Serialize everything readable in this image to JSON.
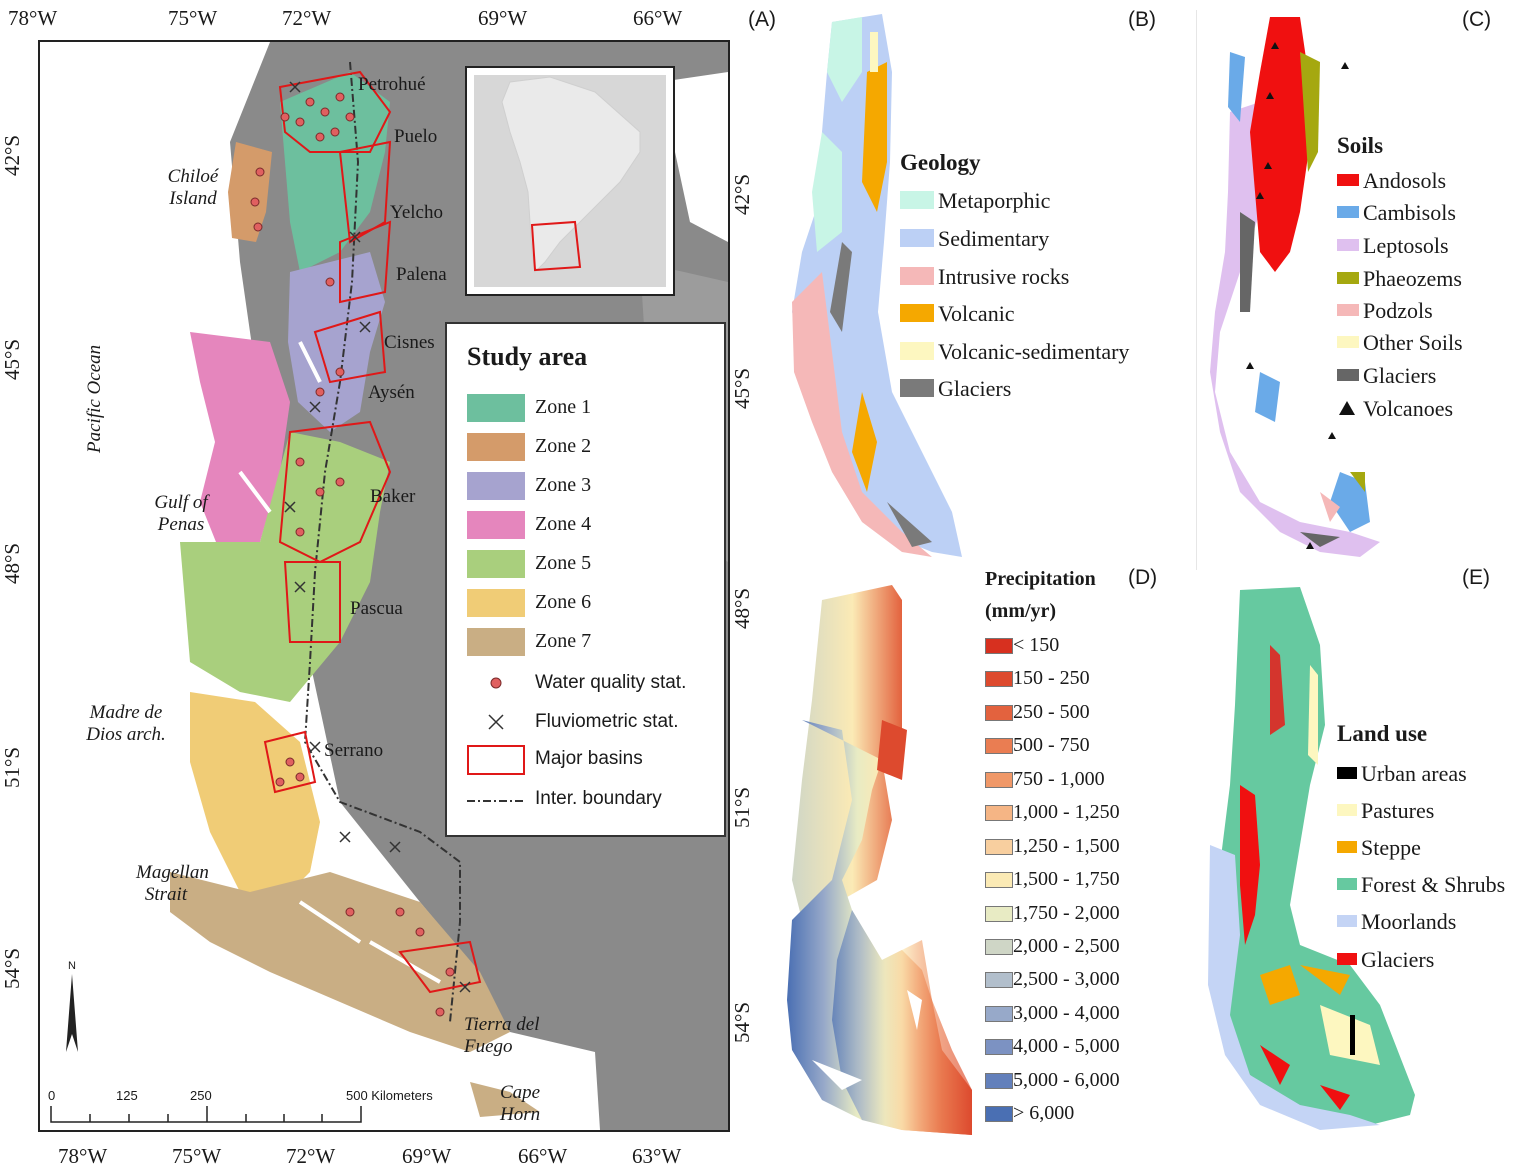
{
  "panel_a": {
    "letter": "(A)",
    "top_lon": [
      "78°W",
      "75°W",
      "72°W",
      "69°W",
      "66°W"
    ],
    "bottom_lon": [
      "78°W",
      "75°W",
      "72°W",
      "69°W",
      "66°W",
      "63°W"
    ],
    "left_lat": [
      "42°S",
      "45°S",
      "48°S",
      "51°S",
      "54°S"
    ],
    "places": {
      "chiloe": "Chiloé Island",
      "pacific": "Pacific Ocean",
      "gulf": "Gulf of Penas",
      "madre": "Madre de Dios arch.",
      "magellan": "Magellan Strait",
      "tierra": "Tierra del Fuego",
      "cape": "Cape Horn"
    },
    "basins": [
      "Petrohué",
      "Puelo",
      "Yelcho",
      "Palena",
      "Cisnes",
      "Aysén",
      "Baker",
      "Pascua",
      "Serrano"
    ],
    "legend": {
      "title": "Study area",
      "zones": [
        {
          "label": "Zone 1",
          "color": "#6dbf9e"
        },
        {
          "label": "Zone 2",
          "color": "#d49b6a"
        },
        {
          "label": "Zone 3",
          "color": "#a6a3cf"
        },
        {
          "label": "Zone 4",
          "color": "#e586bd"
        },
        {
          "label": "Zone 5",
          "color": "#a9cf7d"
        },
        {
          "label": "Zone 6",
          "color": "#f0cc76"
        },
        {
          "label": "Zone 7",
          "color": "#c9ae84"
        }
      ],
      "water_quality": "Water quality stat.",
      "fluviometric": "Fluviometric stat.",
      "major_basins": "Major basins",
      "inter_boundary": "Inter. boundary"
    },
    "north_arrow": "N",
    "scale": {
      "ticks": [
        "0",
        "125",
        "250",
        "500 Kilometers"
      ]
    }
  },
  "panel_b": {
    "letter": "(B)",
    "lat_labels": [
      "42°S",
      "45°S"
    ],
    "title": "Geology",
    "items": [
      {
        "label": "Metaporphic",
        "color": "#c8f5e6"
      },
      {
        "label": "Sedimentary",
        "color": "#bcd0f5"
      },
      {
        "label": "Intrusive rocks",
        "color": "#f5b8b8"
      },
      {
        "label": "Volcanic",
        "color": "#f5a800"
      },
      {
        "label": "Volcanic-sedimentary",
        "color": "#fdf7c0"
      },
      {
        "label": "Glaciers",
        "color": "#7a7a7a"
      }
    ]
  },
  "panel_c": {
    "letter": "(C)",
    "title": "Soils",
    "items": [
      {
        "label": "Andosols",
        "color": "#f01010"
      },
      {
        "label": "Cambisols",
        "color": "#6aaae8"
      },
      {
        "label": "Leptosols",
        "color": "#dfc0ef"
      },
      {
        "label": "Phaeozems",
        "color": "#a5a810"
      },
      {
        "label": "Podzols",
        "color": "#f5b8b8"
      },
      {
        "label": "Other Soils",
        "color": "#fdf7c0"
      },
      {
        "label": "Glaciers",
        "color": "#666666"
      }
    ],
    "volcanoes": "Volcanoes"
  },
  "panel_d": {
    "letter": "(D)",
    "lat_labels": [
      "48°S",
      "51°S",
      "54°S"
    ],
    "title_line1": "Precipitation",
    "title_line2": "(mm/yr)",
    "classes": [
      {
        "label": "< 150",
        "color": "#d7301f"
      },
      {
        "label": "150 - 250",
        "color": "#dd4a2e"
      },
      {
        "label": "250 - 500",
        "color": "#e3623e"
      },
      {
        "label": "500 - 750",
        "color": "#ea7d52"
      },
      {
        "label": "750 - 1,000",
        "color": "#f09868"
      },
      {
        "label": "1,000 - 1,250",
        "color": "#f5b585"
      },
      {
        "label": "1,250 - 1,500",
        "color": "#f8cf9f"
      },
      {
        "label": "1,500 - 1,750",
        "color": "#fbeab5"
      },
      {
        "label": "1,750 - 2,000",
        "color": "#e8ebc4"
      },
      {
        "label": "2,000 - 2,500",
        "color": "#cfd6c6"
      },
      {
        "label": "2,500 - 3,000",
        "color": "#b2bfcc"
      },
      {
        "label": "3,000 - 4,000",
        "color": "#97a9c9"
      },
      {
        "label": "4,000 - 5,000",
        "color": "#7c92c2"
      },
      {
        "label": "5,000 - 6,000",
        "color": "#6380bb"
      },
      {
        "label": "> 6,000",
        "color": "#4a6fb3"
      }
    ]
  },
  "panel_e": {
    "letter": "(E)",
    "title": "Land use",
    "items": [
      {
        "label": "Urban areas",
        "color": "#000000"
      },
      {
        "label": "Pastures",
        "color": "#fdf7c0"
      },
      {
        "label": "Steppe",
        "color": "#f5a800"
      },
      {
        "label": "Forest & Shrubs",
        "color": "#66c9a0"
      },
      {
        "label": "Moorlands",
        "color": "#c4d4f5"
      },
      {
        "label": "Glaciers",
        "color": "#f01010"
      }
    ]
  }
}
